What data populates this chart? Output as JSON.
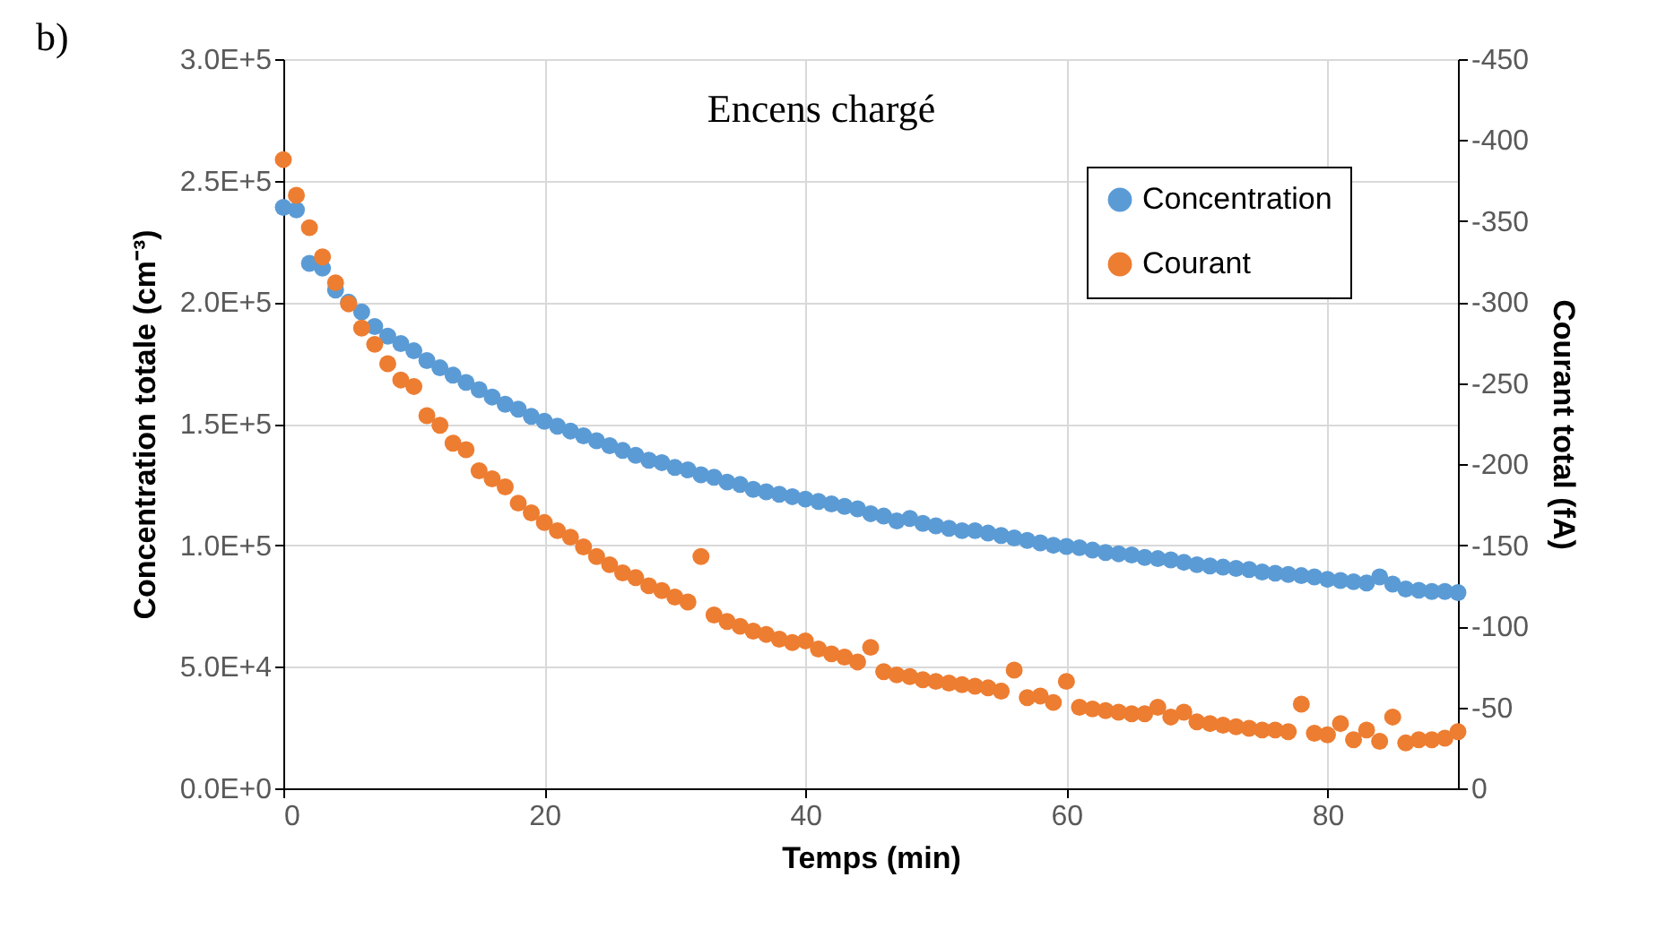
{
  "chart_data": {
    "type": "scatter",
    "title": "Encens chargé",
    "annotations": [
      "b)"
    ],
    "xlabel": "Temps (min)",
    "ylabel": "Concentration totale (cm⁻³)",
    "y2label": "Courant total (fA)",
    "x": [
      0,
      1,
      2,
      3,
      4,
      5,
      6,
      7,
      8,
      9,
      10,
      11,
      12,
      13,
      14,
      15,
      16,
      17,
      18,
      19,
      20,
      21,
      22,
      23,
      24,
      25,
      26,
      27,
      28,
      29,
      30,
      31,
      32,
      33,
      34,
      35,
      36,
      37,
      38,
      39,
      40,
      41,
      42,
      43,
      44,
      45,
      46,
      47,
      48,
      49,
      50,
      51,
      52,
      53,
      54,
      55,
      56,
      57,
      58,
      59,
      60,
      61,
      62,
      63,
      64,
      65,
      66,
      67,
      68,
      69,
      70,
      71,
      72,
      73,
      74,
      75,
      76,
      77,
      78,
      79,
      80,
      81,
      82,
      83,
      84,
      85,
      86,
      87,
      88,
      89,
      90
    ],
    "series": [
      {
        "name": "Concentration",
        "color": "#5b9bd5",
        "values": [
          239000,
          238000,
          216000,
          214000,
          205000,
          200000,
          196000,
          190000,
          186000,
          183000,
          180000,
          176000,
          173000,
          170000,
          167000,
          164000,
          161000,
          158000,
          156000,
          153000,
          151000,
          149000,
          147000,
          145000,
          143000,
          141000,
          139000,
          137000,
          135000,
          134000,
          132000,
          131000,
          129000,
          128000,
          126000,
          125000,
          123000,
          122000,
          121000,
          120000,
          119000,
          118000,
          117000,
          116000,
          115000,
          113000,
          112000,
          110000,
          111000,
          109000,
          108000,
          107000,
          106000,
          106000,
          105000,
          104000,
          103000,
          102000,
          101000,
          100000,
          99500,
          99000,
          98000,
          97000,
          96500,
          96000,
          95000,
          94500,
          94000,
          93000,
          92000,
          91500,
          91000,
          90500,
          90000,
          89000,
          88500,
          88000,
          87500,
          87000,
          86000,
          85500,
          85000,
          84500,
          87000,
          84000,
          82000,
          81500,
          81000,
          81000,
          80500
        ]
      },
      {
        "name": "Courant",
        "color": "#ed7d31",
        "axis": "y2",
        "values": [
          -388,
          -366,
          -346,
          -328,
          -312,
          -299,
          -284,
          -274,
          -262,
          -252,
          -248,
          -230,
          -224,
          -213,
          -209,
          -196,
          -191,
          -186,
          -176,
          -170,
          -164,
          -159,
          -155,
          -149,
          -143,
          -138,
          -133,
          -130,
          -125,
          -122,
          -118,
          -115,
          -143,
          -107,
          -103,
          -100,
          -97,
          -95,
          -92,
          -90,
          -91,
          -86,
          -83,
          -81,
          -78,
          -87,
          -72,
          -70,
          -69,
          -67,
          -66,
          -65,
          -64,
          -63,
          -62,
          -60,
          -73,
          -56,
          -57,
          -53,
          -66,
          -50,
          -49,
          -48,
          -47,
          -46,
          -46,
          -50,
          -44,
          -47,
          -41,
          -40,
          -39,
          -38,
          -37,
          -36,
          -36,
          -35,
          -52,
          -34,
          -33,
          -40,
          -30,
          -36,
          -29,
          -44,
          -28,
          -30,
          -30,
          -31,
          -35
        ]
      }
    ],
    "xlim": [
      0,
      90
    ],
    "xticks": [
      0,
      20,
      40,
      60,
      80
    ],
    "ylim": [
      0,
      300000
    ],
    "yticks": [
      {
        "value": 0,
        "label": "0.0E+0"
      },
      {
        "value": 50000,
        "label": "5.0E+4"
      },
      {
        "value": 100000,
        "label": "1.0E+5"
      },
      {
        "value": 150000,
        "label": "1.5E+5"
      },
      {
        "value": 200000,
        "label": "2.0E+5"
      },
      {
        "value": 250000,
        "label": "2.5E+5"
      },
      {
        "value": 300000,
        "label": "3.0E+5"
      }
    ],
    "y2lim": [
      0,
      -450
    ],
    "y2ticks": [
      0,
      -50,
      -100,
      -150,
      -200,
      -250,
      -300,
      -350,
      -400,
      -450
    ],
    "grid": true,
    "legend": "top right",
    "marker": "circle"
  }
}
